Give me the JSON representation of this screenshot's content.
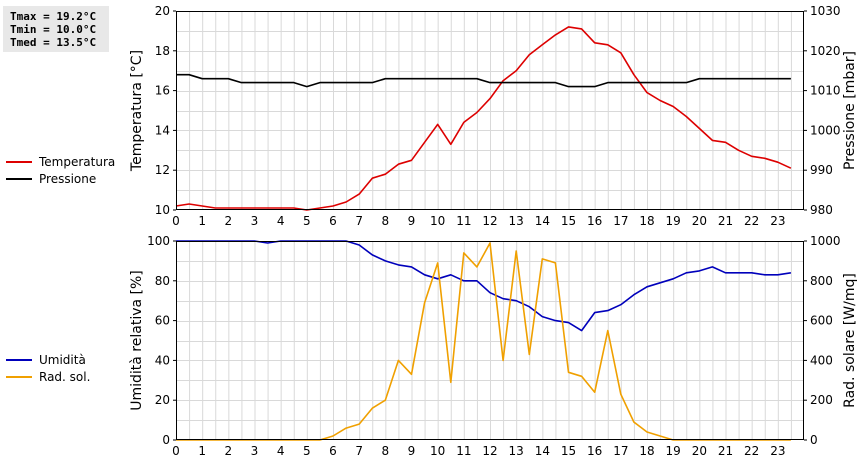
{
  "stats": {
    "tmax": "Tmax = 19.2°C",
    "tmin": "Tmin = 10.0°C",
    "tmed": "Tmed = 13.5°C"
  },
  "legend_top": [
    {
      "label": "Temperatura",
      "color": "#dd0000"
    },
    {
      "label": "Pressione",
      "color": "#000000"
    }
  ],
  "legend_bottom": [
    {
      "label": "Umidità",
      "color": "#0000bb"
    },
    {
      "label": "Rad. sol.",
      "color": "#f0a000"
    }
  ],
  "chart_data": [
    {
      "type": "line",
      "ylabel": "Temperatura [°C]",
      "y2label": "Pressione [mbar]",
      "xlim": [
        0,
        24
      ],
      "ylim": [
        10,
        20
      ],
      "y2lim": [
        980,
        1030
      ],
      "yticks": [
        10,
        12,
        14,
        16,
        18,
        20
      ],
      "y2ticks": [
        980,
        990,
        1000,
        1010,
        1020,
        1030
      ],
      "xticks": [
        "0",
        "1",
        "2",
        "3",
        "4",
        "5",
        "6",
        "7",
        "8",
        "9",
        "10",
        "11",
        "12",
        "13",
        "14",
        "15",
        "16",
        "17",
        "18",
        "19",
        "20",
        "21",
        "22",
        "23"
      ],
      "grid": true,
      "series": [
        {
          "name": "Temperatura",
          "axis": "left",
          "color": "#dd0000",
          "x": [
            0,
            0.5,
            1,
            1.5,
            2,
            2.5,
            3,
            3.5,
            4,
            4.5,
            5,
            5.5,
            6,
            6.5,
            7,
            7.5,
            8,
            8.5,
            9,
            9.5,
            10,
            10.5,
            11,
            11.5,
            12,
            12.5,
            13,
            13.5,
            14,
            14.5,
            15,
            15.5,
            16,
            16.5,
            17,
            17.5,
            18,
            18.5,
            19,
            19.5,
            20,
            20.5,
            21,
            21.5,
            22,
            22.5,
            23,
            23.5
          ],
          "values": [
            10.2,
            10.3,
            10.2,
            10.1,
            10.1,
            10.1,
            10.1,
            10.1,
            10.1,
            10.1,
            10.0,
            10.1,
            10.2,
            10.4,
            10.8,
            11.6,
            11.8,
            12.3,
            12.5,
            13.4,
            14.3,
            13.3,
            14.4,
            14.9,
            15.6,
            16.5,
            17.0,
            17.8,
            18.3,
            18.8,
            19.2,
            19.1,
            18.4,
            18.3,
            17.9,
            16.8,
            15.9,
            15.5,
            15.2,
            14.7,
            14.1,
            13.5,
            13.4,
            13.0,
            12.7,
            12.6,
            12.4,
            12.1
          ]
        },
        {
          "name": "Pressione",
          "axis": "right",
          "color": "#000000",
          "x": [
            0,
            0.5,
            1,
            1.5,
            2,
            2.5,
            3,
            3.5,
            4,
            4.5,
            5,
            5.5,
            6,
            6.5,
            7,
            7.5,
            8,
            8.5,
            9,
            9.5,
            10,
            10.5,
            11,
            11.5,
            12,
            12.5,
            13,
            13.5,
            14,
            14.5,
            15,
            15.5,
            16,
            16.5,
            17,
            17.5,
            18,
            18.5,
            19,
            19.5,
            20,
            20.5,
            21,
            21.5,
            22,
            22.5,
            23,
            23.5
          ],
          "values": [
            1014,
            1014,
            1013,
            1013,
            1013,
            1012,
            1012,
            1012,
            1012,
            1012,
            1011,
            1012,
            1012,
            1012,
            1012,
            1012,
            1013,
            1013,
            1013,
            1013,
            1013,
            1013,
            1013,
            1013,
            1012,
            1012,
            1012,
            1012,
            1012,
            1012,
            1011,
            1011,
            1011,
            1012,
            1012,
            1012,
            1012,
            1012,
            1012,
            1012,
            1013,
            1013,
            1013,
            1013,
            1013,
            1013,
            1013,
            1013
          ]
        }
      ]
    },
    {
      "type": "line",
      "ylabel": "Umidità relativa [%]",
      "y2label": "Rad. solare [W/mq]",
      "xlim": [
        0,
        24
      ],
      "ylim": [
        0,
        100
      ],
      "y2lim": [
        0,
        1000
      ],
      "yticks": [
        0,
        20,
        40,
        60,
        80,
        100
      ],
      "y2ticks": [
        0,
        200,
        400,
        600,
        800,
        1000
      ],
      "xticks": [
        "0",
        "1",
        "2",
        "3",
        "4",
        "5",
        "6",
        "7",
        "8",
        "9",
        "10",
        "11",
        "12",
        "13",
        "14",
        "15",
        "16",
        "17",
        "18",
        "19",
        "20",
        "21",
        "22",
        "23"
      ],
      "grid": true,
      "series": [
        {
          "name": "Umidità",
          "axis": "left",
          "color": "#0000bb",
          "x": [
            0,
            0.5,
            1,
            1.5,
            2,
            2.5,
            3,
            3.5,
            4,
            4.5,
            5,
            5.5,
            6,
            6.5,
            7,
            7.5,
            8,
            8.5,
            9,
            9.5,
            10,
            10.5,
            11,
            11.5,
            12,
            12.5,
            13,
            13.5,
            14,
            14.5,
            15,
            15.5,
            16,
            16.5,
            17,
            17.5,
            18,
            18.5,
            19,
            19.5,
            20,
            20.5,
            21,
            21.5,
            22,
            22.5,
            23,
            23.5
          ],
          "values": [
            100,
            100,
            100,
            100,
            100,
            100,
            100,
            99,
            100,
            100,
            100,
            100,
            100,
            100,
            98,
            93,
            90,
            88,
            87,
            83,
            81,
            83,
            80,
            80,
            74,
            71,
            70,
            67,
            62,
            60,
            59,
            55,
            64,
            65,
            68,
            73,
            77,
            79,
            81,
            84,
            85,
            87,
            84,
            84,
            84,
            83,
            83,
            84
          ]
        },
        {
          "name": "Rad. sol.",
          "axis": "right",
          "color": "#f0a000",
          "x": [
            0,
            0.5,
            1,
            1.5,
            2,
            2.5,
            3,
            3.5,
            4,
            4.5,
            5,
            5.5,
            6,
            6.5,
            7,
            7.5,
            8,
            8.5,
            9,
            9.5,
            10,
            10.5,
            11,
            11.5,
            12,
            12.5,
            13,
            13.5,
            14,
            14.5,
            15,
            15.5,
            16,
            16.5,
            17,
            17.5,
            18,
            18.5,
            19,
            19.5,
            20,
            20.5,
            21,
            21.5,
            22,
            22.5,
            23,
            23.5
          ],
          "values": [
            0,
            0,
            0,
            0,
            0,
            0,
            0,
            0,
            0,
            0,
            0,
            0,
            20,
            60,
            80,
            160,
            200,
            400,
            330,
            690,
            890,
            290,
            940,
            870,
            990,
            400,
            950,
            430,
            910,
            890,
            340,
            320,
            240,
            550,
            230,
            90,
            40,
            20,
            0,
            0,
            0,
            0,
            0,
            0,
            0,
            0,
            0,
            0
          ]
        }
      ]
    }
  ]
}
